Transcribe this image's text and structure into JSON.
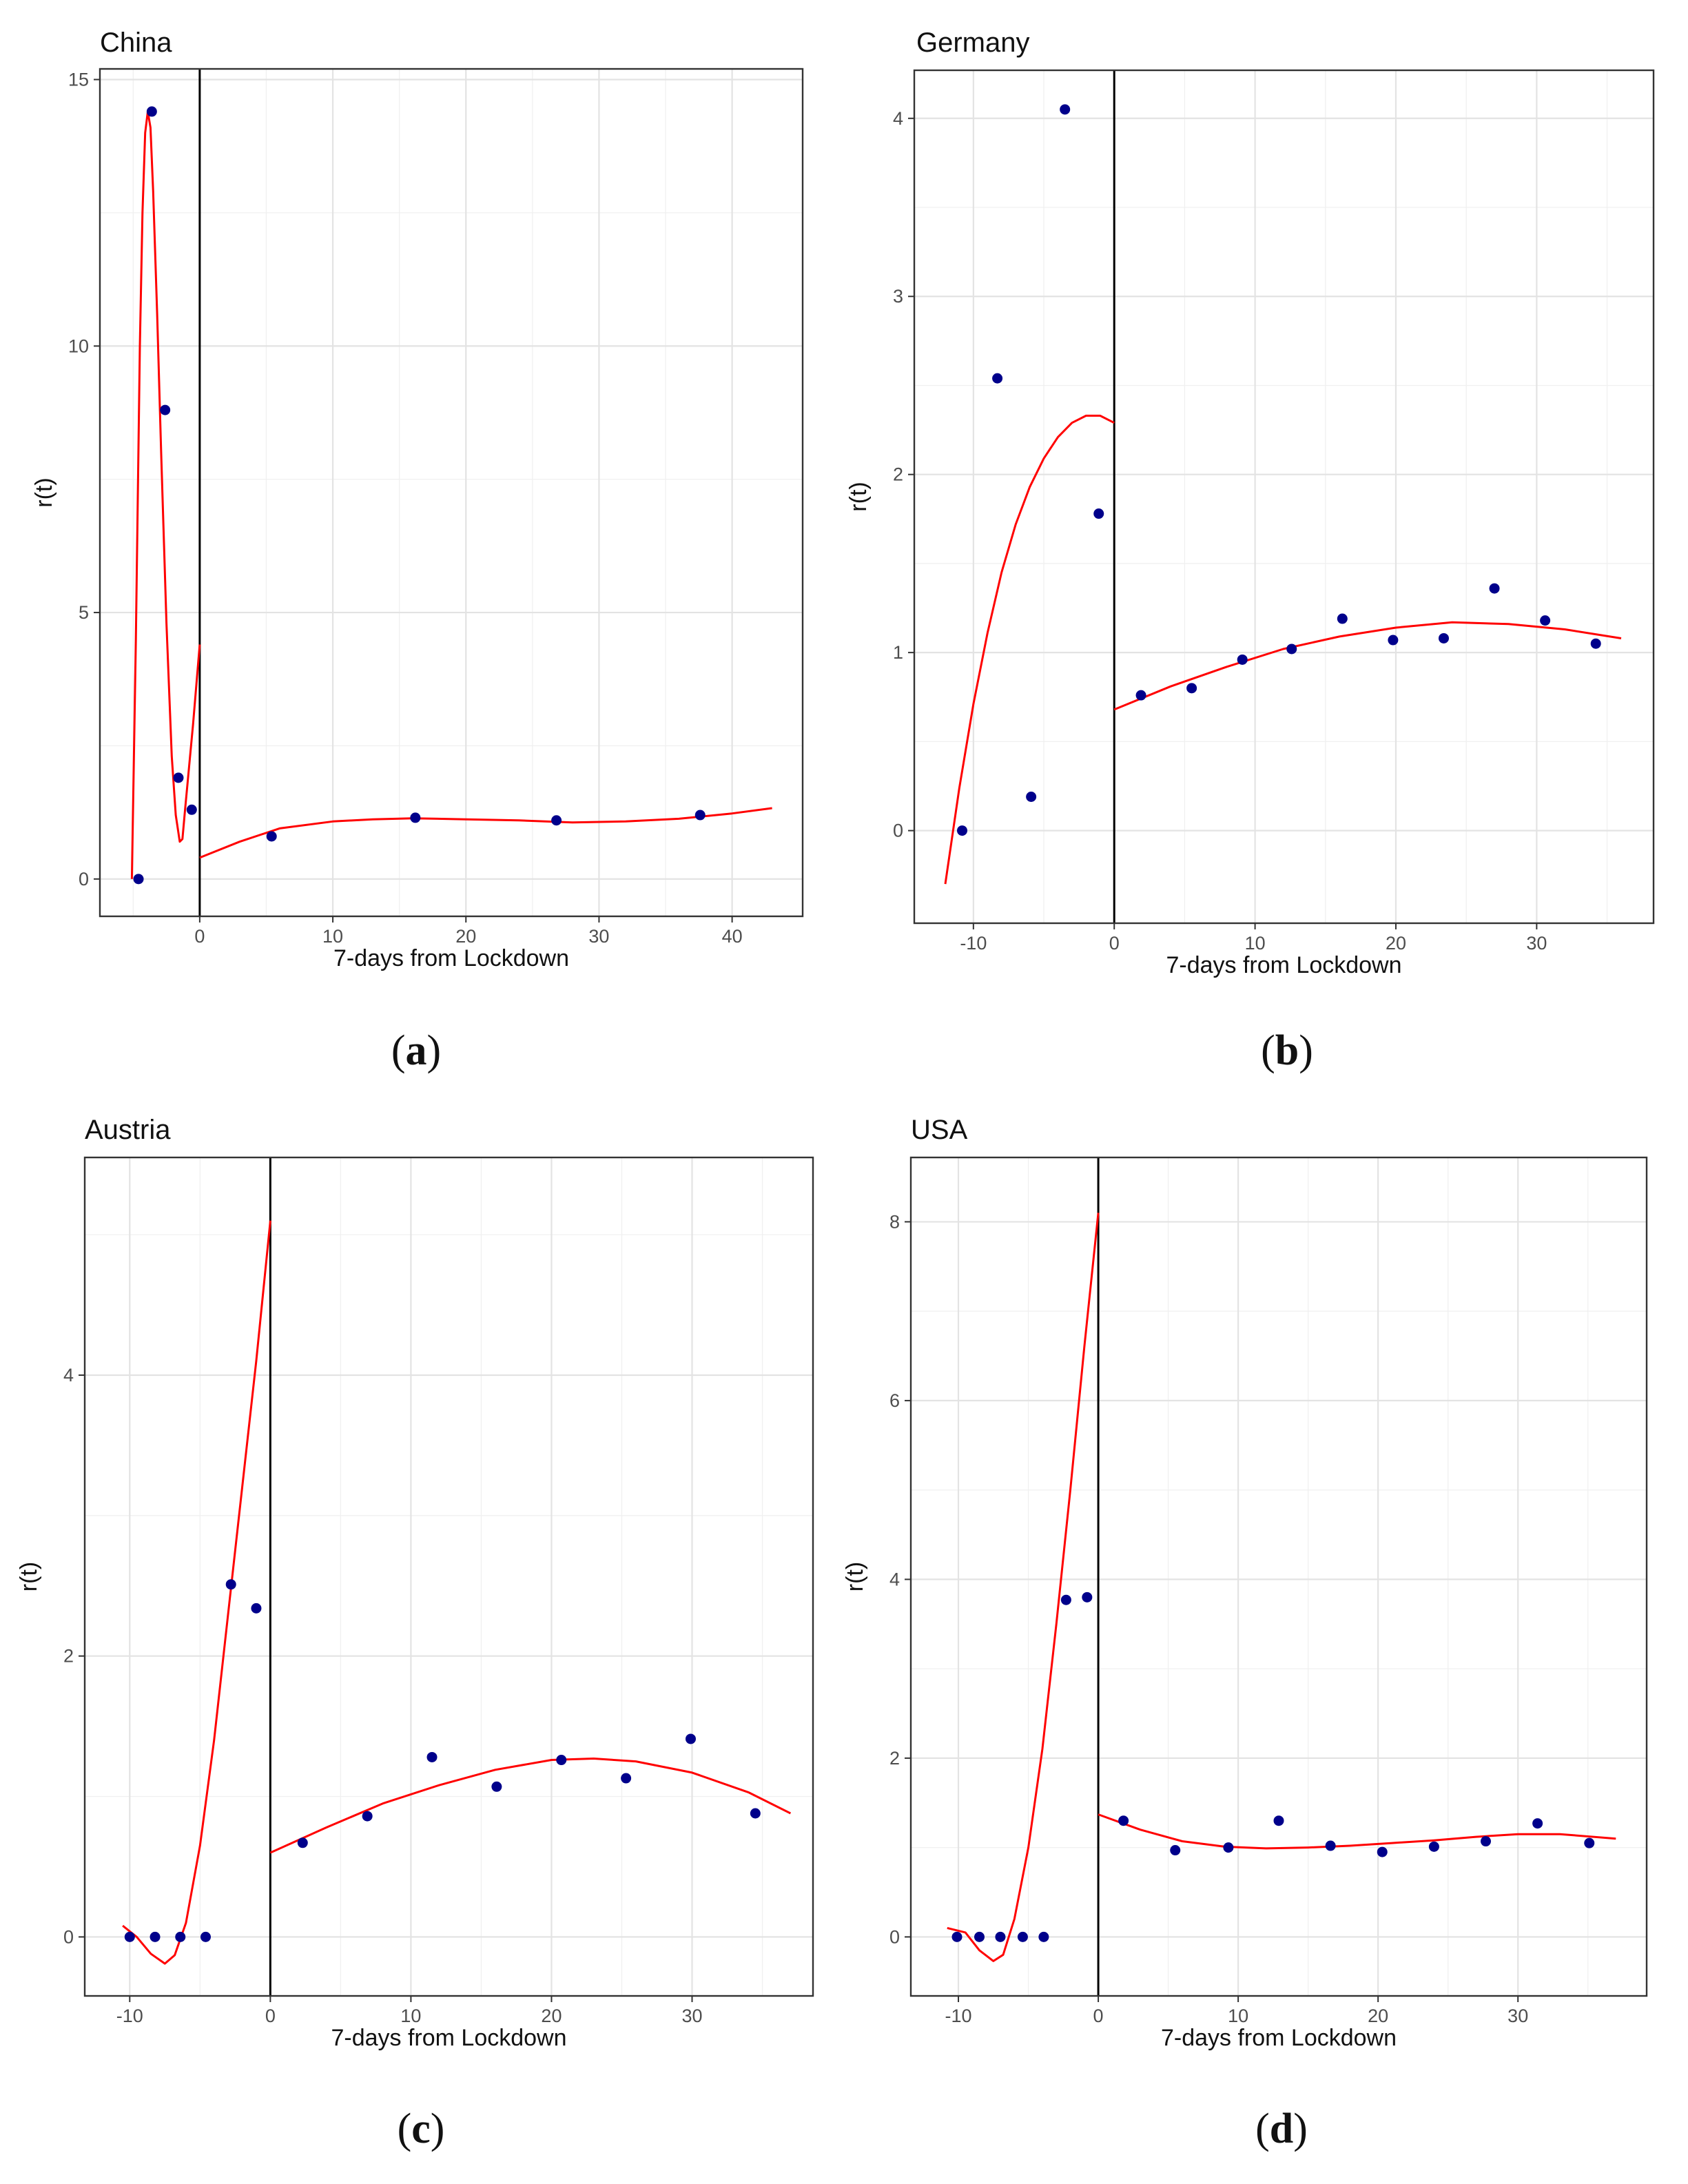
{
  "chart_data": [
    {
      "type": "scatter",
      "title": "China",
      "panel_label": "a",
      "xlabel": "7-days from Lockdown",
      "ylabel": "r(t)",
      "xlim": [
        -7.5,
        45.3
      ],
      "ylim": [
        -0.7,
        15.2
      ],
      "xticks": [
        0,
        10,
        20,
        30,
        40
      ],
      "xtick_labels": [
        "0",
        "10",
        "20",
        "30",
        "40"
      ],
      "yticks": [
        0,
        5,
        10,
        15
      ],
      "ytick_labels": [
        "0",
        "5",
        "10",
        "15"
      ],
      "xminor": [
        -5,
        5,
        15,
        25,
        35
      ],
      "yminor": [
        2.5,
        7.5,
        12.5
      ],
      "vline_x": 0,
      "points": {
        "x": [
          -4.6,
          -3.6,
          -2.6,
          -1.6,
          -0.6,
          5.4,
          16.2,
          26.8,
          37.6
        ],
        "y": [
          0,
          14.4,
          8.8,
          1.9,
          1.3,
          0.8,
          1.15,
          1.1,
          1.2
        ]
      },
      "fit_segments": [
        {
          "x": [
            -5.1,
            -4.8,
            -4.5,
            -4.3,
            -4.1,
            -3.9,
            -3.7,
            -3.5,
            -3.2,
            -2.9,
            -2.5,
            -2.1,
            -1.8,
            -1.5,
            -1.3,
            -1.1,
            -0.8,
            -0.5,
            -0.2,
            0
          ],
          "y": [
            0.0,
            4.5,
            10.0,
            12.5,
            14.0,
            14.4,
            14.1,
            12.9,
            10.6,
            8.0,
            4.8,
            2.3,
            1.2,
            0.7,
            0.75,
            1.3,
            2.1,
            2.9,
            3.8,
            4.4
          ]
        },
        {
          "x": [
            0,
            3,
            6,
            10,
            13,
            16,
            20,
            24,
            28,
            32,
            36,
            40,
            43
          ],
          "y": [
            0.4,
            0.7,
            0.95,
            1.08,
            1.12,
            1.14,
            1.12,
            1.1,
            1.06,
            1.08,
            1.13,
            1.23,
            1.33
          ]
        }
      ]
    },
    {
      "type": "scatter",
      "title": "Germany",
      "panel_label": "b",
      "xlabel": "7-days from Lockdown",
      "ylabel": "r(t)",
      "xlim": [
        -14.2,
        38.3
      ],
      "ylim": [
        -0.52,
        4.27
      ],
      "xticks": [
        -10,
        0,
        10,
        20,
        30
      ],
      "xtick_labels": [
        "-10",
        "0",
        "10",
        "20",
        "30"
      ],
      "yticks": [
        0,
        1,
        2,
        3,
        4
      ],
      "ytick_labels": [
        "0",
        "1",
        "2",
        "3",
        "4"
      ],
      "xminor": [
        -5,
        5,
        15,
        25,
        35
      ],
      "yminor": [
        0.5,
        1.5,
        2.5,
        3.5
      ],
      "vline_x": 0,
      "points": {
        "x": [
          -10.8,
          -8.3,
          -5.9,
          -3.5,
          -1.1,
          1.9,
          5.5,
          9.1,
          12.6,
          16.2,
          19.8,
          23.4,
          27.0,
          30.6,
          34.2
        ],
        "y": [
          0,
          2.54,
          0.19,
          4.05,
          1.78,
          0.76,
          0.8,
          0.96,
          1.02,
          1.19,
          1.07,
          1.08,
          1.36,
          1.18,
          1.05
        ]
      },
      "fit_segments": [
        {
          "x": [
            -12,
            -11,
            -10,
            -9,
            -8,
            -7,
            -6,
            -5,
            -4,
            -3,
            -2,
            -1,
            0
          ],
          "y": [
            -0.3,
            0.24,
            0.71,
            1.11,
            1.45,
            1.72,
            1.93,
            2.09,
            2.21,
            2.29,
            2.33,
            2.33,
            2.29
          ]
        },
        {
          "x": [
            0,
            4,
            8,
            12,
            16,
            20,
            24,
            28,
            32,
            36
          ],
          "y": [
            0.68,
            0.81,
            0.92,
            1.02,
            1.09,
            1.14,
            1.17,
            1.16,
            1.13,
            1.08
          ]
        }
      ]
    },
    {
      "type": "scatter",
      "title": "Austria",
      "panel_label": "c",
      "xlabel": "7-days from Lockdown",
      "ylabel": "r(t)",
      "xlim": [
        -13.2,
        38.6
      ],
      "ylim": [
        -0.42,
        5.55
      ],
      "xticks": [
        -10,
        0,
        10,
        20,
        30
      ],
      "xtick_labels": [
        "-10",
        "0",
        "10",
        "20",
        "30"
      ],
      "yticks": [
        0,
        2,
        4
      ],
      "ytick_labels": [
        "0",
        "2",
        "4"
      ],
      "xminor": [
        -5,
        5,
        15,
        25,
        35
      ],
      "yminor": [
        1,
        3,
        5
      ],
      "vline_x": 0,
      "points": {
        "x": [
          -10,
          -8.2,
          -6.4,
          -4.6,
          -2.8,
          -1.0,
          2.3,
          6.9,
          11.5,
          16.1,
          20.7,
          25.3,
          29.9,
          34.5
        ],
        "y": [
          0,
          0,
          0,
          0,
          2.51,
          2.34,
          0.67,
          0.86,
          1.28,
          1.07,
          1.26,
          1.13,
          1.41,
          0.88
        ]
      },
      "fit_segments": [
        {
          "x": [
            -10.5,
            -9.5,
            -8.5,
            -7.5,
            -6.8,
            -6.0,
            -5.0,
            -4.0,
            -3.0,
            -2.0,
            -1.0,
            0
          ],
          "y": [
            0.08,
            0.0,
            -0.12,
            -0.19,
            -0.13,
            0.1,
            0.65,
            1.4,
            2.3,
            3.2,
            4.1,
            5.1
          ]
        },
        {
          "x": [
            0,
            4,
            8,
            12,
            16,
            20,
            23,
            26,
            30,
            34,
            37
          ],
          "y": [
            0.6,
            0.78,
            0.95,
            1.08,
            1.19,
            1.26,
            1.27,
            1.25,
            1.17,
            1.03,
            0.88
          ]
        }
      ]
    },
    {
      "type": "scatter",
      "title": "USA",
      "panel_label": "d",
      "xlabel": "7-days from Lockdown",
      "ylabel": "r(t)",
      "xlim": [
        -13.4,
        39.2
      ],
      "ylim": [
        -0.66,
        8.72
      ],
      "xticks": [
        -10,
        0,
        10,
        20,
        30
      ],
      "xtick_labels": [
        "-10",
        "0",
        "10",
        "20",
        "30"
      ],
      "yticks": [
        0,
        2,
        4,
        6,
        8
      ],
      "ytick_labels": [
        "0",
        "2",
        "4",
        "6",
        "8"
      ],
      "xminor": [
        -5,
        5,
        15,
        25,
        35
      ],
      "yminor": [
        1,
        3,
        5,
        7
      ],
      "vline_x": 0,
      "points": {
        "x": [
          -10.1,
          -8.5,
          -7.0,
          -5.4,
          -3.9,
          -2.3,
          -0.8,
          1.8,
          5.5,
          9.3,
          12.9,
          16.6,
          20.3,
          24.0,
          27.7,
          31.4,
          35.1
        ],
        "y": [
          0,
          0,
          0,
          0,
          0,
          3.77,
          3.8,
          1.3,
          0.97,
          1.0,
          1.3,
          1.02,
          0.95,
          1.01,
          1.07,
          1.27,
          1.05
        ]
      },
      "fit_segments": [
        {
          "x": [
            -10.8,
            -9.5,
            -8.5,
            -7.5,
            -6.8,
            -6.0,
            -5.0,
            -4.0,
            -3.0,
            -2.0,
            -1.0,
            0
          ],
          "y": [
            0.1,
            0.05,
            -0.15,
            -0.27,
            -0.2,
            0.2,
            1.0,
            2.1,
            3.5,
            5.0,
            6.6,
            8.1
          ]
        },
        {
          "x": [
            0,
            3,
            6,
            9,
            12,
            15,
            18,
            21,
            24,
            27,
            30,
            33,
            37
          ],
          "y": [
            1.37,
            1.2,
            1.07,
            1.01,
            0.99,
            1.0,
            1.02,
            1.05,
            1.08,
            1.12,
            1.15,
            1.15,
            1.1
          ]
        }
      ]
    }
  ]
}
